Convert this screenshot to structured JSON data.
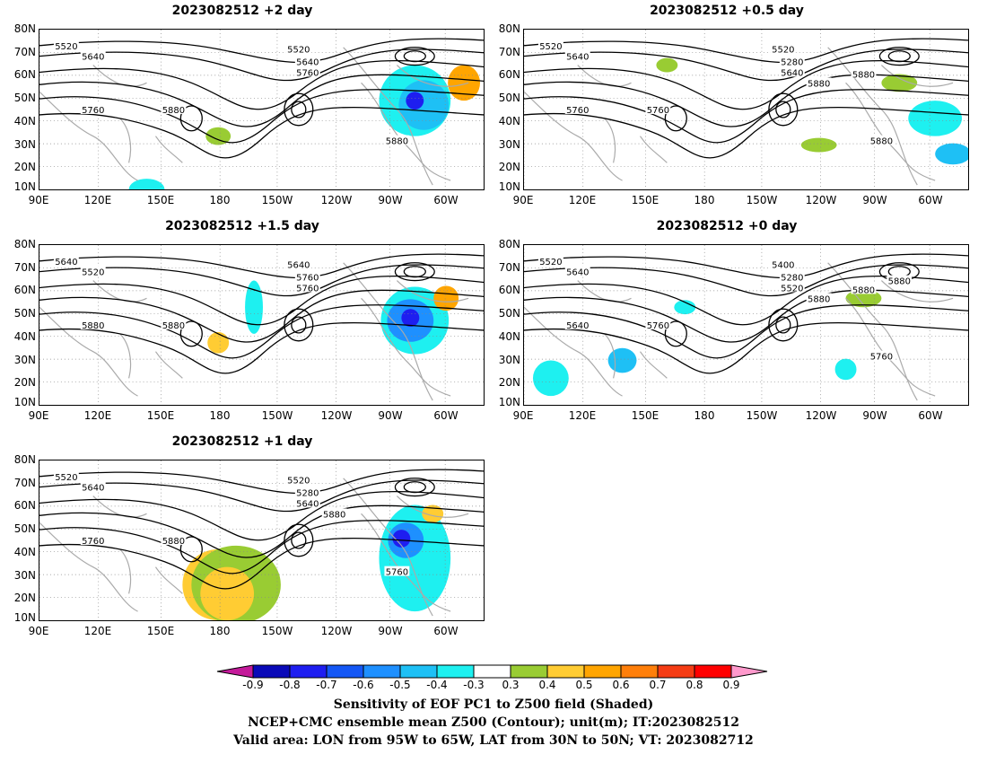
{
  "panels": [
    {
      "title": "2023082512  +2 day",
      "col": 0,
      "row": 0,
      "contour_labels": [
        "5520",
        "5640",
        "5520",
        "5640",
        "5760",
        "5760",
        "5880",
        "5880"
      ],
      "blobs": "a"
    },
    {
      "title": "2023082512  +0.5 day",
      "col": 1,
      "row": 0,
      "contour_labels": [
        "5520",
        "5640",
        "5520",
        "5280",
        "5640",
        "5760",
        "5760",
        "5880",
        "5880",
        "5880"
      ],
      "blobs": "b"
    },
    {
      "title": "2023082512  +1.5 day",
      "col": 0,
      "row": 1,
      "contour_labels": [
        "5640",
        "5520",
        "5640",
        "5760",
        "5760",
        "5880",
        "5880"
      ],
      "blobs": "c"
    },
    {
      "title": "2023082512  +0 day",
      "col": 1,
      "row": 1,
      "contour_labels": [
        "5520",
        "5640",
        "5400",
        "5280",
        "5520",
        "5640",
        "5760",
        "5760",
        "5880",
        "5880",
        "5880"
      ],
      "blobs": "d"
    },
    {
      "title": "2023082512  +1 day",
      "col": 0,
      "row": 2,
      "contour_labels": [
        "5520",
        "5640",
        "5520",
        "5280",
        "5640",
        "5760",
        "5880",
        "5760",
        "5880"
      ],
      "blobs": "e"
    }
  ],
  "axes": {
    "lat_labels": [
      "80N",
      "70N",
      "60N",
      "50N",
      "40N",
      "30N",
      "20N",
      "10N"
    ],
    "lon_labels": [
      "90E",
      "120E",
      "150E",
      "180",
      "150W",
      "120W",
      "90W",
      "60W"
    ],
    "lon_range": [
      "90E",
      "50W"
    ],
    "lat_range": [
      10,
      80
    ],
    "grid": "dotted"
  },
  "colorbar": {
    "levels": [
      "-0.9",
      "-0.8",
      "-0.7",
      "-0.6",
      "-0.5",
      "-0.4",
      "-0.3",
      "0.3",
      "0.4",
      "0.5",
      "0.6",
      "0.7",
      "0.8",
      "0.9"
    ],
    "colors": [
      "#c41a9a",
      "#0a0ab8",
      "#1e1ef0",
      "#1457f5",
      "#1e90ff",
      "#1ec0f5",
      "#1ef0f0",
      "#ffffff",
      "#99cc33",
      "#ffcc33",
      "#ffa500",
      "#ff7f0a",
      "#f53c14",
      "#ff0000",
      "#ff99cc"
    ]
  },
  "captions": {
    "line1": "Sensitivity of EOF PC1 to Z500 field (Shaded)",
    "line2": "NCEP+CMC ensemble mean Z500 (Contour); unit(m); IT:2023082512",
    "line3": "Valid area: LON from 95W to 65W, LAT from 30N to 50N; VT: 2023082712"
  }
}
